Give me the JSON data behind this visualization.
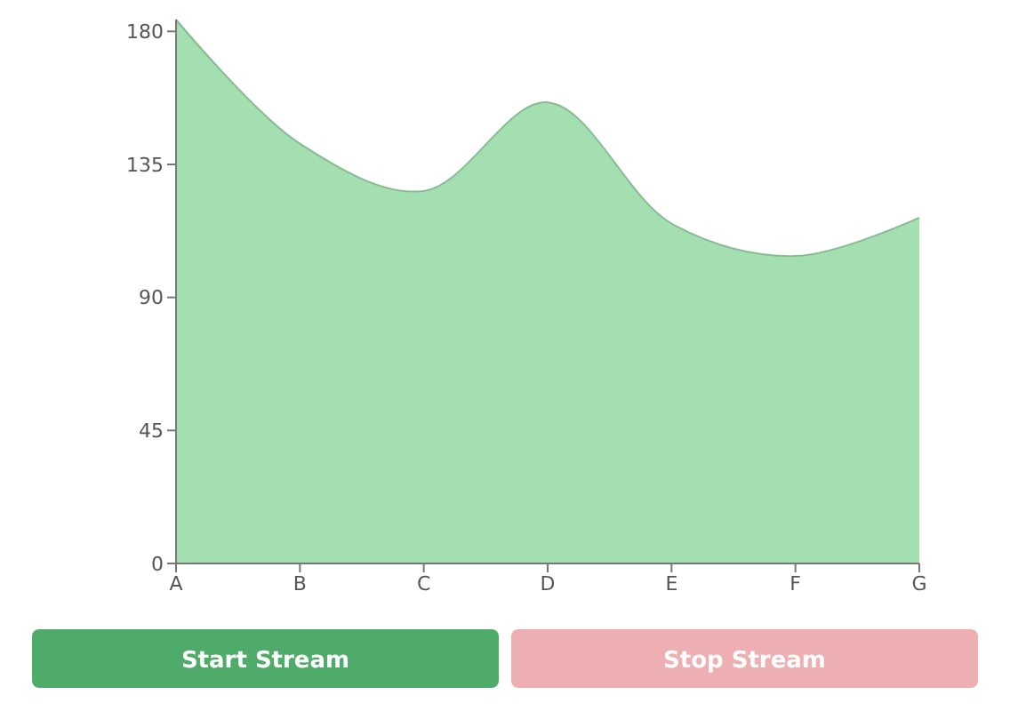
{
  "chart_data": {
    "type": "area",
    "categories": [
      "A",
      "B",
      "C",
      "D",
      "E",
      "F",
      "G"
    ],
    "series": [
      {
        "color": "#a3dfb0",
        "values": [
          184,
          142,
          126,
          156,
          115,
          104,
          117
        ]
      }
    ],
    "ylim": [
      0,
      184
    ],
    "yticks": [
      0,
      45,
      90,
      135,
      180
    ],
    "grid": false,
    "annotations": [
      "Start Stream",
      "Stop Stream"
    ]
  }
}
